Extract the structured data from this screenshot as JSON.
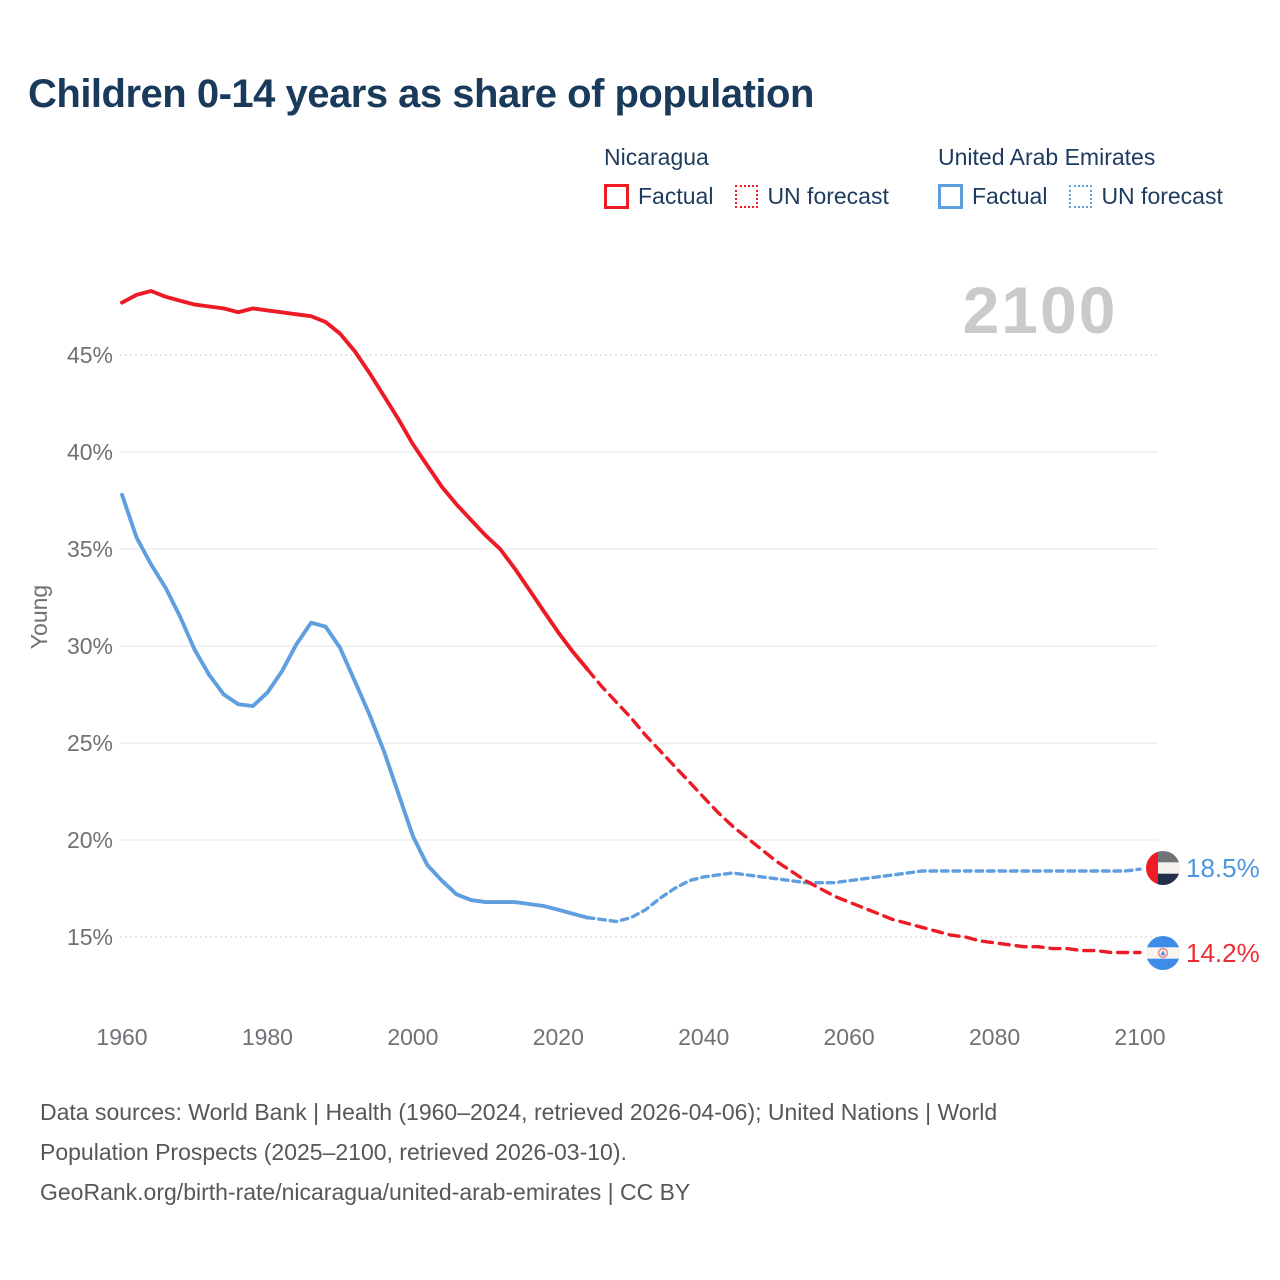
{
  "title": "Children 0-14 years as share of population",
  "watermark": "2100",
  "colors": {
    "nicaragua": "#ed1b26",
    "uae": "#5f9fe0",
    "title_navy": "#1a3a5c",
    "watermark_gray": "#c8cacc",
    "grid_solid": "#ebebeb",
    "grid_dotted": "#d8d8d8",
    "tick_gray": "#6e7276"
  },
  "legend": {
    "groups": [
      {
        "country": "Nicaragua",
        "color": "#ed1b26",
        "items": [
          {
            "label": "Factual",
            "style": "solid"
          },
          {
            "label": "UN forecast",
            "style": "dashed"
          }
        ]
      },
      {
        "country": "United Arab Emirates",
        "color": "#5f9fe0",
        "items": [
          {
            "label": "Factual",
            "style": "solid"
          },
          {
            "label": "UN forecast",
            "style": "dashed"
          }
        ]
      }
    ]
  },
  "end_labels": [
    {
      "series": "United Arab Emirates",
      "value": "18.5%"
    },
    {
      "series": "Nicaragua",
      "value": "14.2%"
    }
  ],
  "footer": {
    "lines": [
      "Data sources: World Bank | Health (1960–2024, retrieved 2026-04-06); United Nations | World",
      "Population Prospects (2025–2100, retrieved 2026-03-10).",
      "GeoRank.org/birth-rate/nicaragua/united-arab-emirates | CC BY"
    ]
  },
  "chart_data": {
    "type": "line",
    "title": "Children 0-14 years as share of population",
    "xlabel": "",
    "ylabel": "Young",
    "x_ticks": [
      {
        "value": 1960,
        "label": "1960"
      },
      {
        "value": 1980,
        "label": "1980"
      },
      {
        "value": 2000,
        "label": "2000"
      },
      {
        "value": 2020,
        "label": "2020"
      },
      {
        "value": 2040,
        "label": "2040"
      },
      {
        "value": 2060,
        "label": "2060"
      },
      {
        "value": 2080,
        "label": "2080"
      },
      {
        "value": 2100,
        "label": "2100"
      }
    ],
    "y_ticks": [
      {
        "value": 45,
        "label": "45%"
      },
      {
        "value": 40,
        "label": "40%"
      },
      {
        "value": 35,
        "label": "35%"
      },
      {
        "value": 30,
        "label": "30%"
      },
      {
        "value": 25,
        "label": "25%"
      },
      {
        "value": 20,
        "label": "20%"
      },
      {
        "value": 15,
        "label": "15%"
      }
    ],
    "dotted_gridlines": [
      45,
      15
    ],
    "xlim": [
      1960,
      2100
    ],
    "ylim": [
      13.5,
      49
    ],
    "grid": true,
    "legend_position": "top",
    "series": [
      {
        "name": "Nicaragua — Factual",
        "color": "#ed1b26",
        "style": "solid",
        "points": [
          [
            1960,
            47.7
          ],
          [
            1962,
            48.1
          ],
          [
            1964,
            48.3
          ],
          [
            1966,
            48.0
          ],
          [
            1968,
            47.8
          ],
          [
            1970,
            47.6
          ],
          [
            1972,
            47.5
          ],
          [
            1974,
            47.4
          ],
          [
            1976,
            47.2
          ],
          [
            1978,
            47.4
          ],
          [
            1980,
            47.3
          ],
          [
            1982,
            47.2
          ],
          [
            1984,
            47.1
          ],
          [
            1986,
            47.0
          ],
          [
            1988,
            46.7
          ],
          [
            1990,
            46.1
          ],
          [
            1992,
            45.2
          ],
          [
            1994,
            44.1
          ],
          [
            1996,
            42.9
          ],
          [
            1998,
            41.7
          ],
          [
            2000,
            40.4
          ],
          [
            2002,
            39.3
          ],
          [
            2004,
            38.2
          ],
          [
            2006,
            37.3
          ],
          [
            2008,
            36.5
          ],
          [
            2010,
            35.7
          ],
          [
            2012,
            35.0
          ],
          [
            2014,
            34.0
          ],
          [
            2016,
            32.9
          ],
          [
            2018,
            31.8
          ],
          [
            2020,
            30.7
          ],
          [
            2022,
            29.7
          ],
          [
            2024,
            28.8
          ]
        ]
      },
      {
        "name": "Nicaragua — UN forecast",
        "color": "#ed1b26",
        "style": "dashed",
        "points": [
          [
            2024,
            28.8
          ],
          [
            2026,
            27.9
          ],
          [
            2028,
            27.1
          ],
          [
            2030,
            26.3
          ],
          [
            2032,
            25.4
          ],
          [
            2034,
            24.6
          ],
          [
            2036,
            23.8
          ],
          [
            2038,
            23.0
          ],
          [
            2040,
            22.2
          ],
          [
            2042,
            21.4
          ],
          [
            2044,
            20.7
          ],
          [
            2046,
            20.1
          ],
          [
            2048,
            19.5
          ],
          [
            2050,
            18.9
          ],
          [
            2052,
            18.4
          ],
          [
            2054,
            17.9
          ],
          [
            2056,
            17.5
          ],
          [
            2058,
            17.1
          ],
          [
            2060,
            16.8
          ],
          [
            2062,
            16.5
          ],
          [
            2064,
            16.2
          ],
          [
            2066,
            15.9
          ],
          [
            2068,
            15.7
          ],
          [
            2070,
            15.5
          ],
          [
            2072,
            15.3
          ],
          [
            2074,
            15.1
          ],
          [
            2076,
            15.0
          ],
          [
            2078,
            14.8
          ],
          [
            2080,
            14.7
          ],
          [
            2082,
            14.6
          ],
          [
            2084,
            14.5
          ],
          [
            2086,
            14.5
          ],
          [
            2088,
            14.4
          ],
          [
            2090,
            14.4
          ],
          [
            2092,
            14.3
          ],
          [
            2094,
            14.3
          ],
          [
            2096,
            14.2
          ],
          [
            2098,
            14.2
          ],
          [
            2100,
            14.2
          ]
        ]
      },
      {
        "name": "United Arab Emirates — Factual",
        "color": "#5f9fe0",
        "style": "solid",
        "points": [
          [
            1960,
            37.8
          ],
          [
            1962,
            35.6
          ],
          [
            1964,
            34.2
          ],
          [
            1966,
            33.0
          ],
          [
            1968,
            31.5
          ],
          [
            1970,
            29.8
          ],
          [
            1972,
            28.5
          ],
          [
            1974,
            27.5
          ],
          [
            1976,
            27.0
          ],
          [
            1978,
            26.9
          ],
          [
            1980,
            27.6
          ],
          [
            1982,
            28.7
          ],
          [
            1984,
            30.1
          ],
          [
            1986,
            31.2
          ],
          [
            1988,
            31.0
          ],
          [
            1990,
            29.9
          ],
          [
            1992,
            28.2
          ],
          [
            1994,
            26.5
          ],
          [
            1996,
            24.6
          ],
          [
            1998,
            22.4
          ],
          [
            2000,
            20.2
          ],
          [
            2002,
            18.7
          ],
          [
            2004,
            17.9
          ],
          [
            2006,
            17.2
          ],
          [
            2008,
            16.9
          ],
          [
            2010,
            16.8
          ],
          [
            2012,
            16.8
          ],
          [
            2014,
            16.8
          ],
          [
            2016,
            16.7
          ],
          [
            2018,
            16.6
          ],
          [
            2020,
            16.4
          ],
          [
            2022,
            16.2
          ],
          [
            2024,
            16.0
          ]
        ]
      },
      {
        "name": "United Arab Emirates — UN forecast",
        "color": "#5f9fe0",
        "style": "dashed",
        "points": [
          [
            2024,
            16.0
          ],
          [
            2026,
            15.9
          ],
          [
            2028,
            15.8
          ],
          [
            2030,
            16.0
          ],
          [
            2032,
            16.4
          ],
          [
            2034,
            17.0
          ],
          [
            2036,
            17.5
          ],
          [
            2038,
            17.9
          ],
          [
            2040,
            18.1
          ],
          [
            2042,
            18.2
          ],
          [
            2044,
            18.3
          ],
          [
            2046,
            18.2
          ],
          [
            2048,
            18.1
          ],
          [
            2050,
            18.0
          ],
          [
            2052,
            17.9
          ],
          [
            2054,
            17.8
          ],
          [
            2056,
            17.8
          ],
          [
            2058,
            17.8
          ],
          [
            2060,
            17.9
          ],
          [
            2062,
            18.0
          ],
          [
            2064,
            18.1
          ],
          [
            2066,
            18.2
          ],
          [
            2068,
            18.3
          ],
          [
            2070,
            18.4
          ],
          [
            2072,
            18.4
          ],
          [
            2074,
            18.4
          ],
          [
            2076,
            18.4
          ],
          [
            2078,
            18.4
          ],
          [
            2080,
            18.4
          ],
          [
            2082,
            18.4
          ],
          [
            2084,
            18.4
          ],
          [
            2086,
            18.4
          ],
          [
            2088,
            18.4
          ],
          [
            2090,
            18.4
          ],
          [
            2092,
            18.4
          ],
          [
            2094,
            18.4
          ],
          [
            2096,
            18.4
          ],
          [
            2098,
            18.4
          ],
          [
            2100,
            18.5
          ]
        ]
      }
    ]
  }
}
